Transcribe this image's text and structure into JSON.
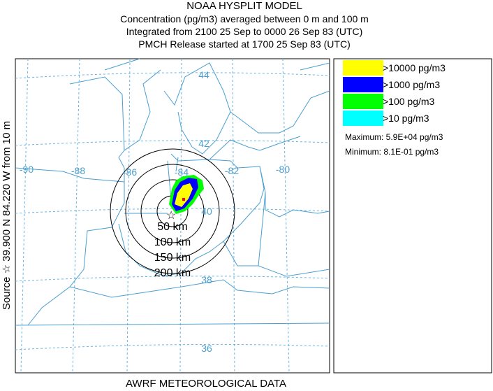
{
  "header": {
    "title": "NOAA HYSPLIT MODEL",
    "line1": "Concentration  (pg/m3) averaged between     0 m and   100 m",
    "line2": "Integrated from 2100 25 Sep to 0000 26 Sep 83 (UTC)",
    "line3": "PMCH Release started at 1700 25 Sep 83 (UTC)"
  },
  "side_label": "Source ☆ 39.900 N  84.220 W  from  10 m",
  "map": {
    "lon_labels": [
      "-90",
      "-88",
      "-86",
      "-84",
      "-82",
      "-80"
    ],
    "lat_labels": [
      "44",
      "42",
      "40",
      "38",
      "36"
    ],
    "ring_labels": [
      "50 km",
      "100 km",
      "150 km",
      "200 km"
    ]
  },
  "legend": {
    "items": [
      {
        "label": ">10000 pg/m3",
        "color": "#ffff00"
      },
      {
        "label": ">1000 pg/m3",
        "color": "#0000ff"
      },
      {
        "label": ">100 pg/m3",
        "color": "#00ff00"
      },
      {
        "label": ">10 pg/m3",
        "color": "#00ffff"
      }
    ],
    "maximum": "Maximum: 5.9E+04 pg/m3",
    "minimum": "Minimum: 8.1E-01 pg/m3"
  },
  "footer": "AWRF METEOROLOGICAL DATA"
}
